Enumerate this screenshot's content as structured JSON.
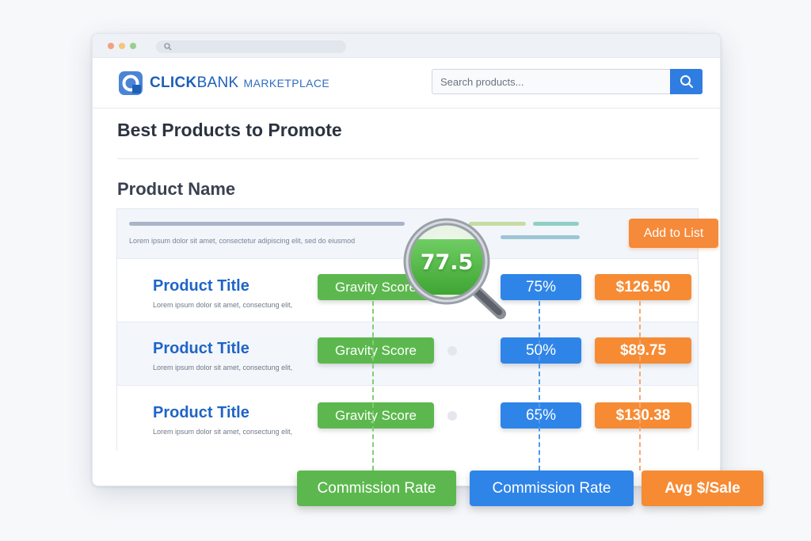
{
  "brand": {
    "logo_bold": "CLICK",
    "logo_regular": "BANK",
    "logo_suffix": "MARKETPLACE",
    "brand_color": "#1d5fb8"
  },
  "search": {
    "placeholder": "Search products..."
  },
  "page": {
    "title": "Best Products to Promote",
    "section_title": "Product Name"
  },
  "table_header": {
    "placeholder_text": "Lorem ipsum dolor sit  amet, consectetur adipiscing elit, sed do eiusmod",
    "add_button": "Add to List"
  },
  "products": [
    {
      "title": "Product Title",
      "desc": "Lorem ipsum dolor sit  amet, consectung elit,",
      "gravity_label": "Gravity Score",
      "commission": "75%",
      "avg_sale": "$126.50"
    },
    {
      "title": "Product Title",
      "desc": "Lorem ipsum dolor sit  amet, consectung elit,",
      "gravity_label": "Gravity Score",
      "commission": "50%",
      "avg_sale": "$89.75"
    },
    {
      "title": "Product Title",
      "desc": "Lorem ipsum dolor sit  amet, consectung elit,",
      "gravity_label": "Gravity Score",
      "commission": "65%",
      "avg_sale": "$130.38"
    }
  ],
  "magnifier": {
    "value": "77.5"
  },
  "callouts": {
    "green": "Commission Rate",
    "blue": "Commission Rate",
    "orange": "Avg $/Sale"
  },
  "colors": {
    "green": "#5cb84e",
    "blue": "#2f84e8",
    "orange": "#f68b34"
  }
}
